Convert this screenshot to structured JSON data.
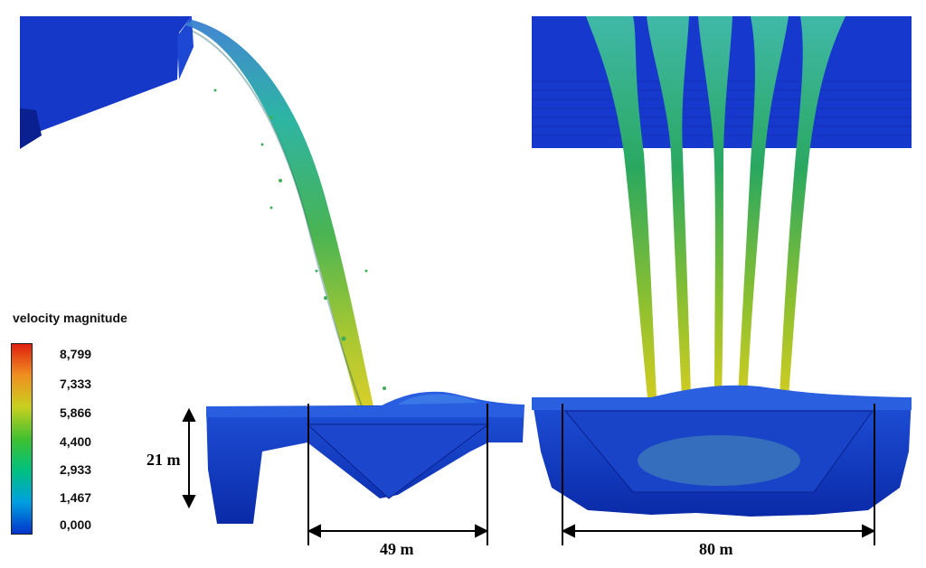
{
  "legend": {
    "title": "velocity magnitude",
    "ticks": [
      "8,799",
      "7,333",
      "5,866",
      "4,400",
      "2,933",
      "1,467",
      "0,000"
    ],
    "colors": [
      "#0033cc",
      "#00a0e0",
      "#00c080",
      "#40c030",
      "#c8d020",
      "#f09020",
      "#e02010"
    ]
  },
  "dimensions": {
    "depth": "21 m",
    "left_width": "49 m",
    "right_width": "80 m"
  },
  "colors": {
    "structure_blue": "#1434c8",
    "deep_blue": "#0a1e9a",
    "jet_green": "#2aa870",
    "jet_yellow": "#c8c820"
  }
}
